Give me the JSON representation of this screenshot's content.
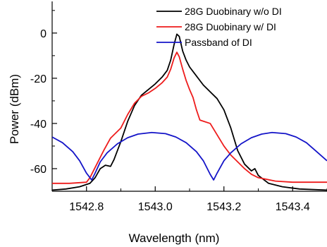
{
  "chart_data": {
    "type": "line",
    "xlabel": "Wavelength (nm)",
    "ylabel": "Power (dBm)",
    "xlim": [
      1542.7,
      1543.5
    ],
    "ylim": [
      -70,
      14
    ],
    "x_ticks": [
      1542.8,
      1543.0,
      1543.2,
      1543.4
    ],
    "x_tick_labels": [
      "1542.8",
      "1543.0",
      "1543.2",
      "1543.4"
    ],
    "y_ticks": [
      0,
      -20,
      -40,
      -60
    ],
    "y_tick_labels": [
      "0",
      "-20",
      "-40",
      "-60"
    ],
    "grid": false,
    "legend_position": "top-right",
    "series": [
      {
        "name": "28G Duobinary w/o DI",
        "color": "#000000",
        "points": [
          [
            1542.7,
            -69.5
          ],
          [
            1542.74,
            -69.0
          ],
          [
            1542.78,
            -68.0
          ],
          [
            1542.81,
            -66.5
          ],
          [
            1542.825,
            -64.0
          ],
          [
            1542.84,
            -60.0
          ],
          [
            1542.855,
            -58.5
          ],
          [
            1542.87,
            -59.0
          ],
          [
            1542.88,
            -56.0
          ],
          [
            1542.9,
            -48.0
          ],
          [
            1542.92,
            -39.0
          ],
          [
            1542.94,
            -32.0
          ],
          [
            1542.96,
            -27.5
          ],
          [
            1542.98,
            -25.0
          ],
          [
            1543.0,
            -22.5
          ],
          [
            1543.02,
            -19.5
          ],
          [
            1543.035,
            -16.5
          ],
          [
            1543.045,
            -12.0
          ],
          [
            1543.055,
            -5.0
          ],
          [
            1543.063,
            -0.5
          ],
          [
            1543.07,
            -1.5
          ],
          [
            1543.08,
            -8.0
          ],
          [
            1543.09,
            -12.0
          ],
          [
            1543.1,
            -15.0
          ],
          [
            1543.12,
            -19.0
          ],
          [
            1543.14,
            -23.0
          ],
          [
            1543.16,
            -26.0
          ],
          [
            1543.18,
            -29.0
          ],
          [
            1543.2,
            -34.0
          ],
          [
            1543.22,
            -42.0
          ],
          [
            1543.24,
            -52.0
          ],
          [
            1543.26,
            -58.0
          ],
          [
            1543.28,
            -61.0
          ],
          [
            1543.29,
            -60.0
          ],
          [
            1543.3,
            -63.0
          ],
          [
            1543.33,
            -66.5
          ],
          [
            1543.37,
            -68.0
          ],
          [
            1543.42,
            -69.0
          ],
          [
            1543.5,
            -69.5
          ]
        ]
      },
      {
        "name": "28G Duobinary w/ DI",
        "color": "#ee1c1c",
        "points": [
          [
            1542.7,
            -66.5
          ],
          [
            1542.75,
            -66.5
          ],
          [
            1542.8,
            -66.0
          ],
          [
            1542.81,
            -64.0
          ],
          [
            1542.83,
            -58.0
          ],
          [
            1542.85,
            -52.0
          ],
          [
            1542.87,
            -46.5
          ],
          [
            1542.9,
            -42.0
          ],
          [
            1542.92,
            -36.0
          ],
          [
            1542.94,
            -31.0
          ],
          [
            1542.96,
            -28.0
          ],
          [
            1542.98,
            -26.5
          ],
          [
            1543.0,
            -24.5
          ],
          [
            1543.02,
            -22.0
          ],
          [
            1543.035,
            -19.5
          ],
          [
            1543.045,
            -16.0
          ],
          [
            1543.055,
            -11.0
          ],
          [
            1543.063,
            -8.5
          ],
          [
            1543.07,
            -10.5
          ],
          [
            1543.08,
            -16.0
          ],
          [
            1543.09,
            -21.0
          ],
          [
            1543.1,
            -25.0
          ],
          [
            1543.11,
            -28.5
          ],
          [
            1543.12,
            -34.0
          ],
          [
            1543.13,
            -38.5
          ],
          [
            1543.14,
            -39.0
          ],
          [
            1543.16,
            -40.0
          ],
          [
            1543.18,
            -45.0
          ],
          [
            1543.2,
            -50.0
          ],
          [
            1543.22,
            -54.0
          ],
          [
            1543.24,
            -57.0
          ],
          [
            1543.26,
            -60.0
          ],
          [
            1543.28,
            -62.5
          ],
          [
            1543.3,
            -64.0
          ],
          [
            1543.35,
            -65.5
          ],
          [
            1543.4,
            -66.0
          ],
          [
            1543.45,
            -66.0
          ],
          [
            1543.5,
            -66.0
          ]
        ]
      },
      {
        "name": "Passband of DI",
        "color": "#1414c8",
        "points": [
          [
            1542.7,
            -46.0
          ],
          [
            1542.73,
            -48.5
          ],
          [
            1542.76,
            -52.5
          ],
          [
            1542.78,
            -56.5
          ],
          [
            1542.8,
            -62.0
          ],
          [
            1542.815,
            -65.0
          ],
          [
            1542.825,
            -62.0
          ],
          [
            1542.84,
            -57.0
          ],
          [
            1542.86,
            -53.0
          ],
          [
            1542.89,
            -49.0
          ],
          [
            1542.92,
            -46.3
          ],
          [
            1542.95,
            -44.7
          ],
          [
            1542.99,
            -44.0
          ],
          [
            1543.03,
            -44.5
          ],
          [
            1543.06,
            -46.0
          ],
          [
            1543.09,
            -48.5
          ],
          [
            1543.12,
            -52.5
          ],
          [
            1543.14,
            -56.5
          ],
          [
            1543.16,
            -62.5
          ],
          [
            1543.17,
            -65.0
          ],
          [
            1543.18,
            -62.0
          ],
          [
            1543.2,
            -56.5
          ],
          [
            1543.22,
            -53.0
          ],
          [
            1543.25,
            -49.0
          ],
          [
            1543.28,
            -46.3
          ],
          [
            1543.31,
            -44.7
          ],
          [
            1543.34,
            -44.0
          ],
          [
            1543.38,
            -44.5
          ],
          [
            1543.41,
            -46.0
          ],
          [
            1543.44,
            -48.5
          ],
          [
            1543.47,
            -52.5
          ],
          [
            1543.5,
            -56.5
          ]
        ]
      }
    ]
  }
}
